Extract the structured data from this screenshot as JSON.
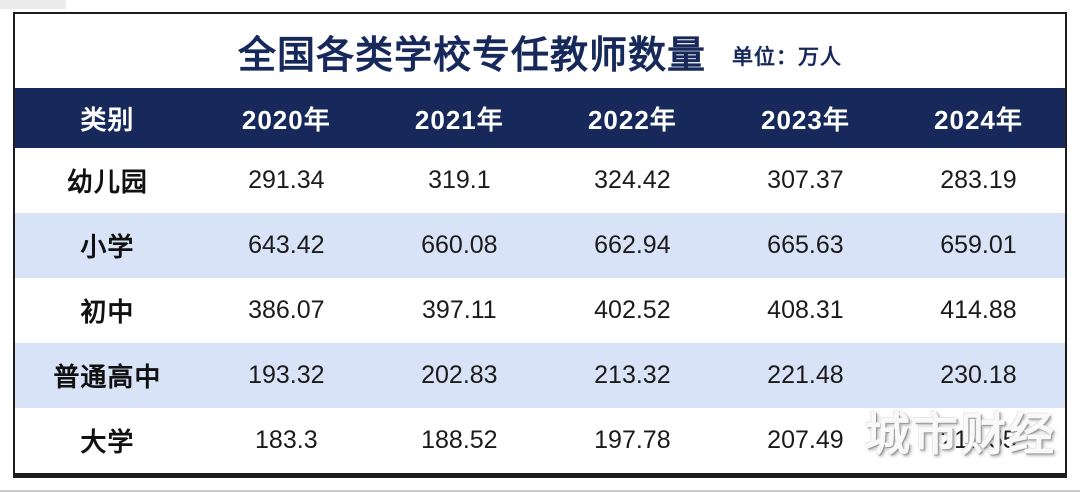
{
  "title": "全国各类学校专任教师数量",
  "unit_label": "单位：万人",
  "watermark": "城市财经",
  "colors": {
    "navy": "#17295b",
    "header_text": "#ffffff",
    "row_alt_blue": "#d9e3f7",
    "row_white": "#ffffff",
    "body_text": "#1b1b1b",
    "frame_border": "#1c1c1c"
  },
  "chart_data": {
    "type": "table",
    "title": "全国各类学校专任教师数量",
    "unit": "万人",
    "columns": [
      "类别",
      "2020年",
      "2021年",
      "2022年",
      "2023年",
      "2024年"
    ],
    "rows": [
      {
        "label": "幼儿园",
        "values": [
          "291.34",
          "319.1",
          "324.42",
          "307.37",
          "283.19"
        ]
      },
      {
        "label": "小学",
        "values": [
          "643.42",
          "660.08",
          "662.94",
          "665.63",
          "659.01"
        ]
      },
      {
        "label": "初中",
        "values": [
          "386.07",
          "397.11",
          "402.52",
          "408.31",
          "414.88"
        ]
      },
      {
        "label": "普通高中",
        "values": [
          "193.32",
          "202.83",
          "213.32",
          "221.48",
          "230.18"
        ]
      },
      {
        "label": "大学",
        "values": [
          "183.3",
          "188.52",
          "197.78",
          "207.49",
          "217.55"
        ]
      }
    ]
  }
}
